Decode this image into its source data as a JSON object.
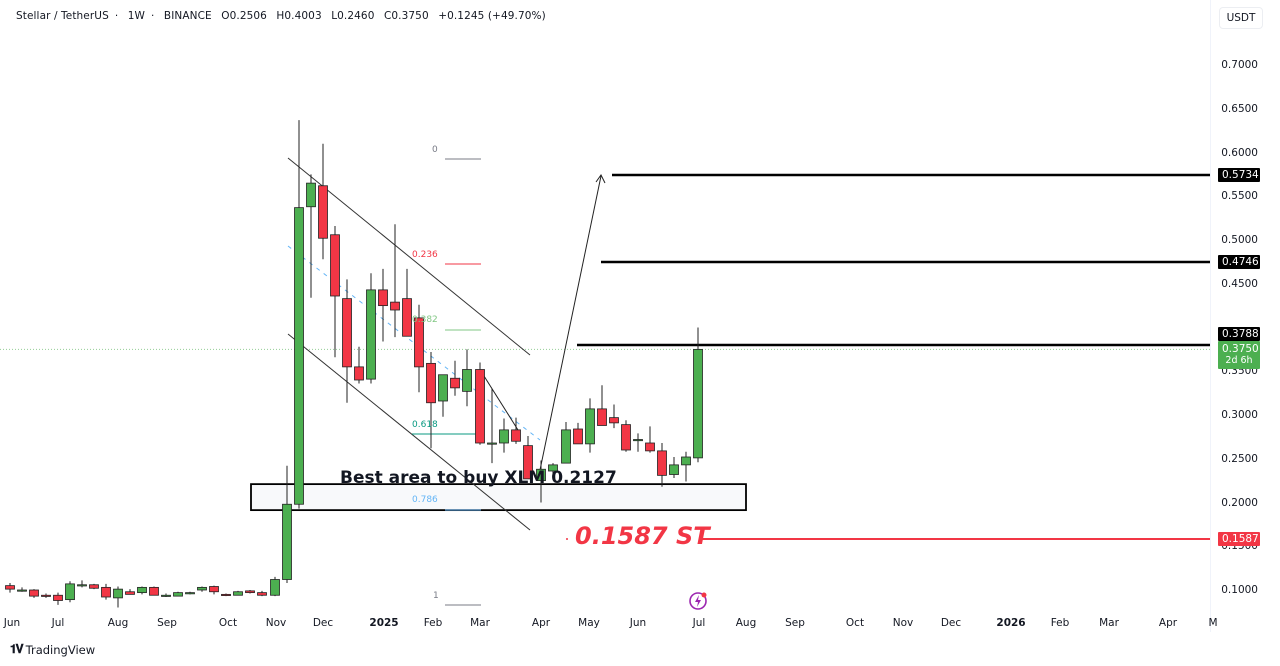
{
  "header": {
    "symbol": "Stellar / TetherUS",
    "interval": "1W",
    "exchange": "BINANCE",
    "open": "O0.2506",
    "high": "H0.4003",
    "low": "L0.2460",
    "close": "C0.3750",
    "change": "+0.1245 (+49.70%)"
  },
  "price_axis": {
    "unit": "USDT",
    "ticks": [
      "0.7000",
      "0.6500",
      "0.6000",
      "0.5500",
      "0.5000",
      "0.4500",
      "0.3500",
      "0.3000",
      "0.2500",
      "0.2000",
      "0.1500",
      "0.1000"
    ],
    "tags": {
      "resistance_high": "0.5734",
      "resistance_mid": "0.4746",
      "resistance_low": "0.3788",
      "last_price": "0.3750",
      "countdown": "2d 6h",
      "stop": "0.1587"
    }
  },
  "time_axis": {
    "labels": [
      "Jun",
      "Jul",
      "Aug",
      "Sep",
      "Oct",
      "Nov",
      "Dec",
      "2025",
      "Feb",
      "Mar",
      "Apr",
      "May",
      "Jun",
      "Jul",
      "Aug",
      "Sep",
      "Oct",
      "Nov",
      "Dec",
      "2026",
      "Feb",
      "Mar",
      "Apr",
      "M"
    ]
  },
  "annotations": {
    "buy_area": "Best area to buy XLM  0.2127",
    "stop_loss": "0.1587 ST",
    "fib": {
      "f0": "0",
      "f236": "0.236",
      "f382": "0.382",
      "f618": "0.618",
      "f786": "0.786",
      "f1": "1"
    }
  },
  "brand": {
    "name": "TradingView"
  },
  "colors": {
    "up": "#4caf50",
    "down": "#f23645",
    "stop": "#f23645",
    "fib0": "#787b86",
    "fib236": "#f23645",
    "fib382": "#81c784",
    "fib618": "#089981",
    "fib786": "#64b5f6",
    "tag_dark": "#000000"
  },
  "chart_data": {
    "type": "candlestick",
    "title": "Stellar / TetherUS · 1W · BINANCE",
    "ylabel": "USDT",
    "ylim": [
      0.07,
      0.72
    ],
    "grid": false,
    "x_range": "Jun 2024 – May 2026 (weekly)",
    "candles": [
      {
        "x": 10,
        "o": 0.105,
        "h": 0.108,
        "l": 0.097,
        "c": 0.101
      },
      {
        "x": 22,
        "o": 0.1,
        "h": 0.103,
        "l": 0.098,
        "c": 0.1
      },
      {
        "x": 34,
        "o": 0.1,
        "h": 0.101,
        "l": 0.091,
        "c": 0.093
      },
      {
        "x": 46,
        "o": 0.094,
        "h": 0.096,
        "l": 0.091,
        "c": 0.093
      },
      {
        "x": 58,
        "o": 0.094,
        "h": 0.097,
        "l": 0.083,
        "c": 0.088
      },
      {
        "x": 70,
        "o": 0.089,
        "h": 0.11,
        "l": 0.086,
        "c": 0.107
      },
      {
        "x": 82,
        "o": 0.106,
        "h": 0.111,
        "l": 0.103,
        "c": 0.106
      },
      {
        "x": 94,
        "o": 0.106,
        "h": 0.107,
        "l": 0.101,
        "c": 0.102
      },
      {
        "x": 106,
        "o": 0.103,
        "h": 0.107,
        "l": 0.089,
        "c": 0.092
      },
      {
        "x": 118,
        "o": 0.091,
        "h": 0.104,
        "l": 0.08,
        "c": 0.101
      },
      {
        "x": 130,
        "o": 0.098,
        "h": 0.101,
        "l": 0.095,
        "c": 0.095
      },
      {
        "x": 142,
        "o": 0.097,
        "h": 0.104,
        "l": 0.095,
        "c": 0.103
      },
      {
        "x": 154,
        "o": 0.103,
        "h": 0.104,
        "l": 0.094,
        "c": 0.094
      },
      {
        "x": 166,
        "o": 0.094,
        "h": 0.096,
        "l": 0.092,
        "c": 0.094
      },
      {
        "x": 178,
        "o": 0.093,
        "h": 0.098,
        "l": 0.093,
        "c": 0.097
      },
      {
        "x": 190,
        "o": 0.097,
        "h": 0.098,
        "l": 0.095,
        "c": 0.097
      },
      {
        "x": 202,
        "o": 0.1,
        "h": 0.104,
        "l": 0.098,
        "c": 0.103
      },
      {
        "x": 214,
        "o": 0.104,
        "h": 0.105,
        "l": 0.095,
        "c": 0.098
      },
      {
        "x": 226,
        "o": 0.095,
        "h": 0.096,
        "l": 0.093,
        "c": 0.094
      },
      {
        "x": 238,
        "o": 0.094,
        "h": 0.099,
        "l": 0.094,
        "c": 0.098
      },
      {
        "x": 250,
        "o": 0.099,
        "h": 0.1,
        "l": 0.096,
        "c": 0.097
      },
      {
        "x": 262,
        "o": 0.097,
        "h": 0.099,
        "l": 0.093,
        "c": 0.094
      },
      {
        "x": 275,
        "o": 0.094,
        "h": 0.115,
        "l": 0.093,
        "c": 0.112
      },
      {
        "x": 287,
        "o": 0.112,
        "h": 0.242,
        "l": 0.108,
        "c": 0.198
      },
      {
        "x": 299,
        "o": 0.198,
        "h": 0.637,
        "l": 0.193,
        "c": 0.537
      },
      {
        "x": 311,
        "o": 0.538,
        "h": 0.575,
        "l": 0.434,
        "c": 0.565
      },
      {
        "x": 323,
        "o": 0.562,
        "h": 0.61,
        "l": 0.478,
        "c": 0.502
      },
      {
        "x": 335,
        "o": 0.506,
        "h": 0.516,
        "l": 0.366,
        "c": 0.436
      },
      {
        "x": 347,
        "o": 0.433,
        "h": 0.455,
        "l": 0.314,
        "c": 0.355
      },
      {
        "x": 359,
        "o": 0.355,
        "h": 0.378,
        "l": 0.336,
        "c": 0.34
      },
      {
        "x": 371,
        "o": 0.341,
        "h": 0.462,
        "l": 0.336,
        "c": 0.443
      },
      {
        "x": 383,
        "o": 0.443,
        "h": 0.467,
        "l": 0.384,
        "c": 0.425
      },
      {
        "x": 395,
        "o": 0.429,
        "h": 0.518,
        "l": 0.389,
        "c": 0.42
      },
      {
        "x": 407,
        "o": 0.433,
        "h": 0.467,
        "l": 0.403,
        "c": 0.39
      },
      {
        "x": 419,
        "o": 0.411,
        "h": 0.426,
        "l": 0.326,
        "c": 0.355
      },
      {
        "x": 431,
        "o": 0.359,
        "h": 0.372,
        "l": 0.262,
        "c": 0.314
      },
      {
        "x": 443,
        "o": 0.316,
        "h": 0.346,
        "l": 0.298,
        "c": 0.346
      },
      {
        "x": 455,
        "o": 0.342,
        "h": 0.362,
        "l": 0.322,
        "c": 0.331
      },
      {
        "x": 467,
        "o": 0.327,
        "h": 0.375,
        "l": 0.31,
        "c": 0.352
      },
      {
        "x": 480,
        "o": 0.352,
        "h": 0.36,
        "l": 0.266,
        "c": 0.268
      },
      {
        "x": 492,
        "o": 0.268,
        "h": 0.33,
        "l": 0.245,
        "c": 0.268
      },
      {
        "x": 504,
        "o": 0.268,
        "h": 0.296,
        "l": 0.257,
        "c": 0.283
      },
      {
        "x": 516,
        "o": 0.283,
        "h": 0.297,
        "l": 0.267,
        "c": 0.27
      },
      {
        "x": 528,
        "o": 0.265,
        "h": 0.276,
        "l": 0.227,
        "c": 0.227
      },
      {
        "x": 541,
        "o": 0.225,
        "h": 0.248,
        "l": 0.2,
        "c": 0.238
      },
      {
        "x": 553,
        "o": 0.236,
        "h": 0.245,
        "l": 0.23,
        "c": 0.243
      },
      {
        "x": 566,
        "o": 0.245,
        "h": 0.292,
        "l": 0.245,
        "c": 0.283
      },
      {
        "x": 578,
        "o": 0.284,
        "h": 0.291,
        "l": 0.267,
        "c": 0.267
      },
      {
        "x": 590,
        "o": 0.267,
        "h": 0.319,
        "l": 0.257,
        "c": 0.307
      },
      {
        "x": 602,
        "o": 0.307,
        "h": 0.334,
        "l": 0.288,
        "c": 0.288
      },
      {
        "x": 614,
        "o": 0.297,
        "h": 0.312,
        "l": 0.285,
        "c": 0.291
      },
      {
        "x": 626,
        "o": 0.289,
        "h": 0.294,
        "l": 0.258,
        "c": 0.26
      },
      {
        "x": 638,
        "o": 0.272,
        "h": 0.279,
        "l": 0.258,
        "c": 0.272
      },
      {
        "x": 650,
        "o": 0.268,
        "h": 0.287,
        "l": 0.257,
        "c": 0.259
      },
      {
        "x": 662,
        "o": 0.259,
        "h": 0.268,
        "l": 0.218,
        "c": 0.231
      },
      {
        "x": 674,
        "o": 0.232,
        "h": 0.252,
        "l": 0.228,
        "c": 0.243
      },
      {
        "x": 686,
        "o": 0.243,
        "h": 0.258,
        "l": 0.224,
        "c": 0.252
      },
      {
        "x": 698,
        "o": 0.251,
        "h": 0.4,
        "l": 0.246,
        "c": 0.375
      }
    ],
    "levels": [
      {
        "name": "target-3",
        "price": 0.5734,
        "color": "#000000"
      },
      {
        "name": "target-2",
        "price": 0.4746,
        "color": "#000000"
      },
      {
        "name": "resistance",
        "price": 0.3788,
        "color": "#000000"
      },
      {
        "name": "stop-loss",
        "price": 0.1587,
        "color": "#f23645"
      }
    ],
    "buy_zone": {
      "low": 0.185,
      "high": 0.213,
      "label": "Best area to buy XLM 0.2127"
    },
    "fibonacci": [
      {
        "level": "0",
        "price": 0.59
      },
      {
        "level": "0.236",
        "price": 0.47
      },
      {
        "level": "0.382",
        "price": 0.395
      },
      {
        "level": "0.618",
        "price": 0.277
      },
      {
        "level": "0.786",
        "price": 0.19
      },
      {
        "level": "1",
        "price": 0.082
      }
    ],
    "last_price": 0.375,
    "countdown": "2d 6h"
  }
}
